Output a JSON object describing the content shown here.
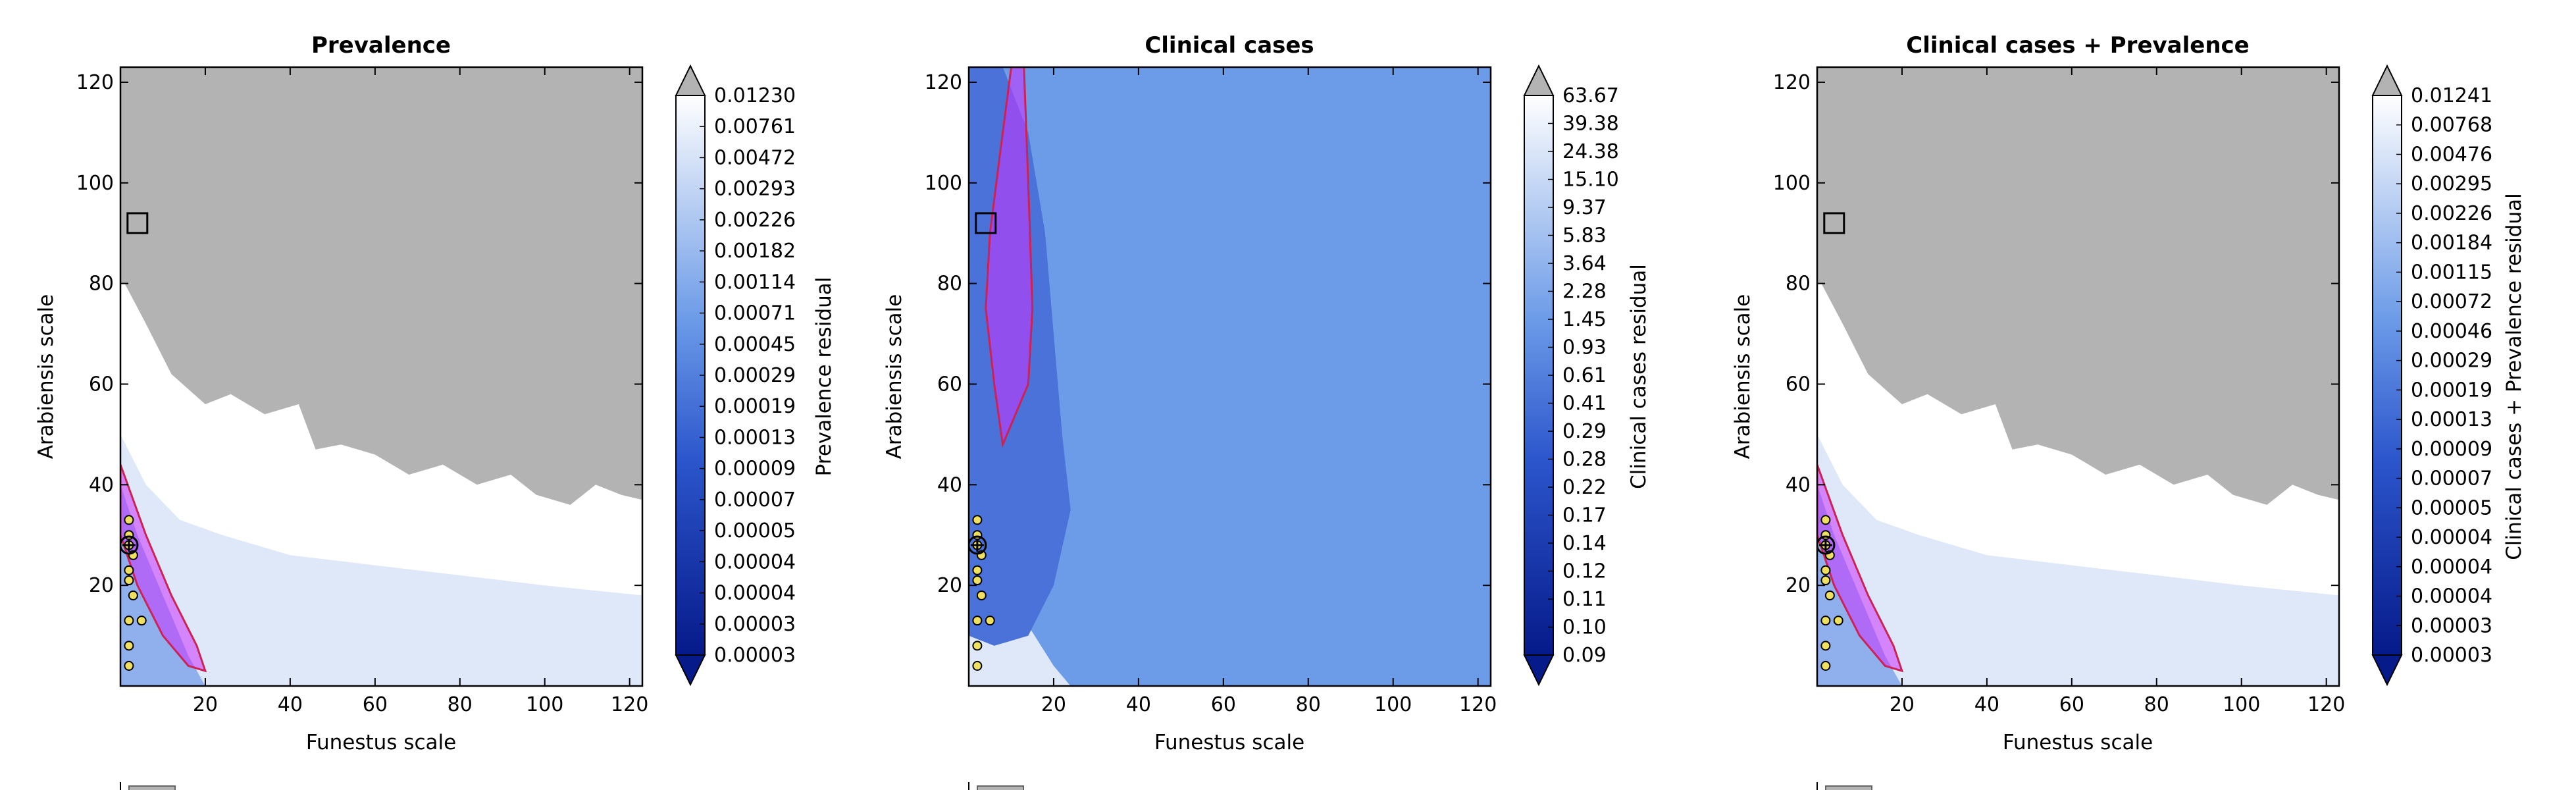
{
  "figure": {
    "background": "#ffffff",
    "mask_color": "#b3b3b3",
    "region_fill": "#cc33ff",
    "region_edge": "#cc2255"
  },
  "chart_data": [
    {
      "type": "heatmap",
      "title": "Prevalence",
      "xlabel": "Funestus scale",
      "ylabel": "Arabiensis scale",
      "xlim": [
        0,
        123
      ],
      "ylim": [
        0,
        123
      ],
      "xticks": [
        "20",
        "40",
        "60",
        "80",
        "100",
        "120"
      ],
      "yticks": [
        "20",
        "40",
        "60",
        "80",
        "100",
        "120"
      ],
      "colorbar_label": "Prevalence residual",
      "colorbar_ticks": [
        "0.01230",
        "0.00761",
        "0.00472",
        "0.00293",
        "0.00226",
        "0.00182",
        "0.00114",
        "0.00071",
        "0.00045",
        "0.00029",
        "0.00019",
        "0.00013",
        "0.00009",
        "0.00007",
        "0.00005",
        "0.00004",
        "0.00004",
        "0.00003",
        "0.00003"
      ],
      "field_background": "#ffffff",
      "gray_region": [
        [
          0,
          123
        ],
        [
          123,
          123
        ],
        [
          123,
          37
        ],
        [
          118,
          38
        ],
        [
          112,
          40
        ],
        [
          106,
          36
        ],
        [
          98,
          38
        ],
        [
          92,
          42
        ],
        [
          84,
          40
        ],
        [
          76,
          44
        ],
        [
          68,
          42
        ],
        [
          60,
          46
        ],
        [
          52,
          48
        ],
        [
          46,
          47
        ],
        [
          42,
          56
        ],
        [
          34,
          54
        ],
        [
          26,
          58
        ],
        [
          20,
          56
        ],
        [
          12,
          62
        ],
        [
          6,
          72
        ],
        [
          1,
          80
        ],
        [
          0,
          80
        ]
      ],
      "light_blue_region": [
        [
          0,
          50
        ],
        [
          6,
          40
        ],
        [
          14,
          33
        ],
        [
          24,
          30
        ],
        [
          40,
          26
        ],
        [
          60,
          24
        ],
        [
          80,
          22
        ],
        [
          100,
          20
        ],
        [
          123,
          18
        ],
        [
          123,
          0
        ],
        [
          0,
          0
        ]
      ],
      "mid_blue_region": [
        [
          0,
          40
        ],
        [
          4,
          30
        ],
        [
          8,
          22
        ],
        [
          12,
          14
        ],
        [
          16,
          6
        ],
        [
          20,
          0
        ],
        [
          0,
          0
        ]
      ],
      "highlight_region": [
        [
          0,
          44
        ],
        [
          6,
          30
        ],
        [
          12,
          18
        ],
        [
          18,
          8
        ],
        [
          20,
          3
        ],
        [
          16,
          4
        ],
        [
          10,
          10
        ],
        [
          4,
          20
        ],
        [
          0,
          30
        ]
      ],
      "square_marker": [
        4,
        92
      ],
      "points": [
        [
          2,
          33
        ],
        [
          2,
          30
        ],
        [
          2,
          28
        ],
        [
          3,
          26
        ],
        [
          2,
          23
        ],
        [
          2,
          21
        ],
        [
          3,
          18
        ],
        [
          2,
          13
        ],
        [
          5,
          13
        ],
        [
          2,
          8
        ],
        [
          2,
          4
        ]
      ],
      "star_marker": [
        2,
        28
      ]
    },
    {
      "type": "heatmap",
      "title": "Clinical cases",
      "xlabel": "Funestus scale",
      "ylabel": "Arabiensis scale",
      "xlim": [
        0,
        123
      ],
      "ylim": [
        0,
        123
      ],
      "xticks": [
        "20",
        "40",
        "60",
        "80",
        "100",
        "120"
      ],
      "yticks": [
        "20",
        "40",
        "60",
        "80",
        "100",
        "120"
      ],
      "colorbar_label": "Clinical cases residual",
      "colorbar_ticks": [
        "63.67",
        "39.38",
        "24.38",
        "15.10",
        "9.37",
        "5.83",
        "3.64",
        "2.28",
        "1.45",
        "0.93",
        "0.61",
        "0.41",
        "0.29",
        "0.28",
        "0.22",
        "0.17",
        "0.14",
        "0.12",
        "0.11",
        "0.10",
        "0.09"
      ],
      "field_background": "#6c9be8",
      "gray_region": [],
      "light_blue_region": [
        [
          0,
          30
        ],
        [
          8,
          22
        ],
        [
          14,
          12
        ],
        [
          20,
          4
        ],
        [
          24,
          0
        ],
        [
          0,
          0
        ]
      ],
      "mid_blue_region": [
        [
          0,
          123
        ],
        [
          8,
          123
        ],
        [
          14,
          110
        ],
        [
          18,
          90
        ],
        [
          20,
          70
        ],
        [
          22,
          50
        ],
        [
          24,
          35
        ],
        [
          20,
          20
        ],
        [
          14,
          10
        ],
        [
          6,
          8
        ],
        [
          0,
          10
        ]
      ],
      "highlight_region": [
        [
          10,
          123
        ],
        [
          13,
          123
        ],
        [
          14,
          100
        ],
        [
          15,
          75
        ],
        [
          14,
          60
        ],
        [
          8,
          48
        ],
        [
          6,
          60
        ],
        [
          4,
          75
        ],
        [
          5,
          90
        ],
        [
          8,
          110
        ]
      ],
      "square_marker": [
        4,
        92
      ],
      "points": [
        [
          2,
          33
        ],
        [
          2,
          30
        ],
        [
          2,
          28
        ],
        [
          3,
          26
        ],
        [
          2,
          23
        ],
        [
          2,
          21
        ],
        [
          3,
          18
        ],
        [
          2,
          13
        ],
        [
          5,
          13
        ],
        [
          2,
          8
        ],
        [
          2,
          4
        ]
      ],
      "star_marker": [
        2,
        28
      ]
    },
    {
      "type": "heatmap",
      "title": "Clinical cases + Prevalence",
      "xlabel": "Funestus scale",
      "ylabel": "Arabiensis scale",
      "xlim": [
        0,
        123
      ],
      "ylim": [
        0,
        123
      ],
      "xticks": [
        "20",
        "40",
        "60",
        "80",
        "100",
        "120"
      ],
      "yticks": [
        "20",
        "40",
        "60",
        "80",
        "100",
        "120"
      ],
      "colorbar_label": "Clinical cases + Prevalence residual",
      "colorbar_ticks": [
        "0.01241",
        "0.00768",
        "0.00476",
        "0.00295",
        "0.00226",
        "0.00184",
        "0.00115",
        "0.00072",
        "0.00046",
        "0.00029",
        "0.00019",
        "0.00013",
        "0.00009",
        "0.00007",
        "0.00005",
        "0.00004",
        "0.00004",
        "0.00004",
        "0.00003",
        "0.00003"
      ],
      "field_background": "#ffffff",
      "gray_region": [
        [
          0,
          123
        ],
        [
          123,
          123
        ],
        [
          123,
          37
        ],
        [
          118,
          38
        ],
        [
          112,
          40
        ],
        [
          106,
          36
        ],
        [
          98,
          38
        ],
        [
          92,
          42
        ],
        [
          84,
          40
        ],
        [
          76,
          44
        ],
        [
          68,
          42
        ],
        [
          60,
          46
        ],
        [
          52,
          48
        ],
        [
          46,
          47
        ],
        [
          42,
          56
        ],
        [
          34,
          54
        ],
        [
          26,
          58
        ],
        [
          20,
          56
        ],
        [
          12,
          62
        ],
        [
          6,
          72
        ],
        [
          1,
          80
        ],
        [
          0,
          80
        ]
      ],
      "light_blue_region": [
        [
          0,
          50
        ],
        [
          6,
          40
        ],
        [
          14,
          33
        ],
        [
          24,
          30
        ],
        [
          40,
          26
        ],
        [
          60,
          24
        ],
        [
          80,
          22
        ],
        [
          100,
          20
        ],
        [
          123,
          18
        ],
        [
          123,
          0
        ],
        [
          0,
          0
        ]
      ],
      "mid_blue_region": [
        [
          0,
          40
        ],
        [
          4,
          30
        ],
        [
          8,
          22
        ],
        [
          12,
          14
        ],
        [
          16,
          6
        ],
        [
          20,
          0
        ],
        [
          0,
          0
        ]
      ],
      "highlight_region": [
        [
          0,
          44
        ],
        [
          6,
          30
        ],
        [
          12,
          18
        ],
        [
          18,
          8
        ],
        [
          20,
          3
        ],
        [
          16,
          4
        ],
        [
          10,
          10
        ],
        [
          4,
          20
        ],
        [
          0,
          30
        ]
      ],
      "square_marker": [
        4,
        92
      ],
      "points": [
        [
          2,
          33
        ],
        [
          2,
          30
        ],
        [
          2,
          28
        ],
        [
          3,
          26
        ],
        [
          2,
          23
        ],
        [
          2,
          21
        ],
        [
          3,
          18
        ],
        [
          2,
          13
        ],
        [
          5,
          13
        ],
        [
          2,
          8
        ],
        [
          2,
          4
        ]
      ],
      "star_marker": [
        2,
        28
      ]
    }
  ]
}
